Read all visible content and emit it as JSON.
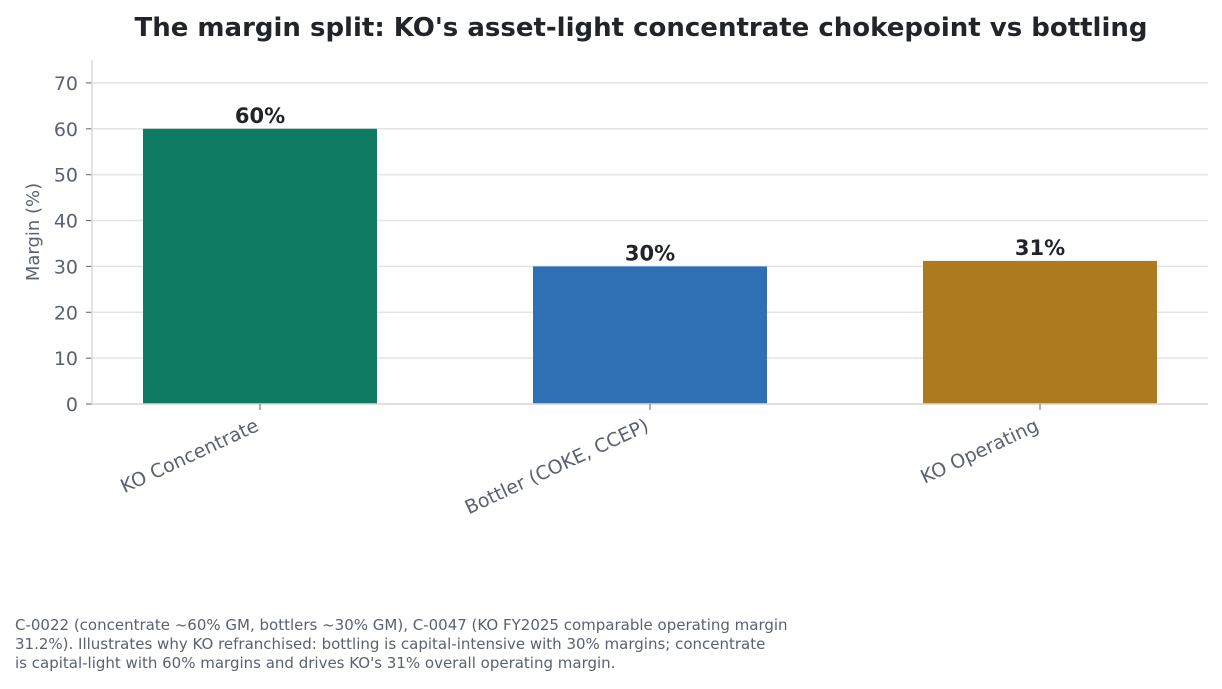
{
  "chart_data": {
    "type": "bar",
    "title": "The margin split: KO's asset-light concentrate chokepoint vs bottling",
    "xlabel": "",
    "ylabel": "Margin (%)",
    "categories": [
      "KO Concentrate",
      "Bottler (COKE, CCEP)",
      "KO Operating"
    ],
    "values": [
      60,
      30,
      31.2
    ],
    "data_labels": [
      "60%",
      "30%",
      "31%"
    ],
    "colors": [
      "#0f7b62",
      "#2f70b4",
      "#ae7a20"
    ],
    "ylim": [
      0,
      75
    ],
    "yticks": [
      0,
      10,
      20,
      30,
      40,
      50,
      60,
      70
    ],
    "grid": true,
    "legend": "none"
  },
  "caption_lines": [
    "C-0022 (concentrate ~60% GM, bottlers ~30% GM), C-0047 (KO FY2025 comparable operating margin",
    "31.2%). Illustrates why KO refranchised: bottling is capital-intensive with 30% margins; concentrate",
    "is capital-light with 60% margins and drives KO's 31% overall operating margin."
  ]
}
